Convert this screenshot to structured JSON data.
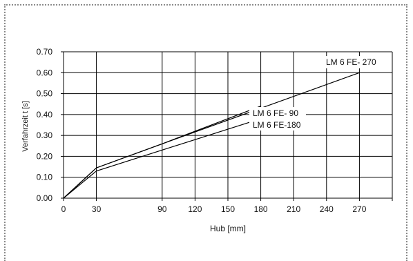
{
  "chart_data": {
    "type": "line",
    "xlabel": "Hub [mm]",
    "ylabel": "Verfahrzeit t [s]",
    "xlim": [
      0,
      300
    ],
    "ylim": [
      0,
      0.7
    ],
    "x_ticks": [
      "0",
      "30",
      "90",
      "120",
      "150",
      "180",
      "210",
      "240",
      "270"
    ],
    "x_tick_values": [
      0,
      30,
      90,
      120,
      150,
      180,
      210,
      240,
      270
    ],
    "y_ticks": [
      "0.00",
      "0.10",
      "0.20",
      "0.30",
      "0.40",
      "0.50",
      "0.60",
      "0.70"
    ],
    "y_tick_values": [
      0,
      0.1,
      0.2,
      0.3,
      0.4,
      0.5,
      0.6,
      0.7
    ],
    "grid": true,
    "series": [
      {
        "name": "LM 6 FE- 270",
        "x": [
          0,
          30,
          90,
          270
        ],
        "y": [
          0.0,
          0.145,
          0.26,
          0.6
        ]
      },
      {
        "name": "LM 6 FE- 90",
        "x": [
          0,
          30,
          90,
          180
        ],
        "y": [
          0.0,
          0.145,
          0.26,
          0.44
        ]
      },
      {
        "name": "LM 6 FE-180",
        "x": [
          0,
          30,
          90,
          180
        ],
        "y": [
          0.0,
          0.13,
          0.23,
          0.38
        ]
      }
    ]
  }
}
